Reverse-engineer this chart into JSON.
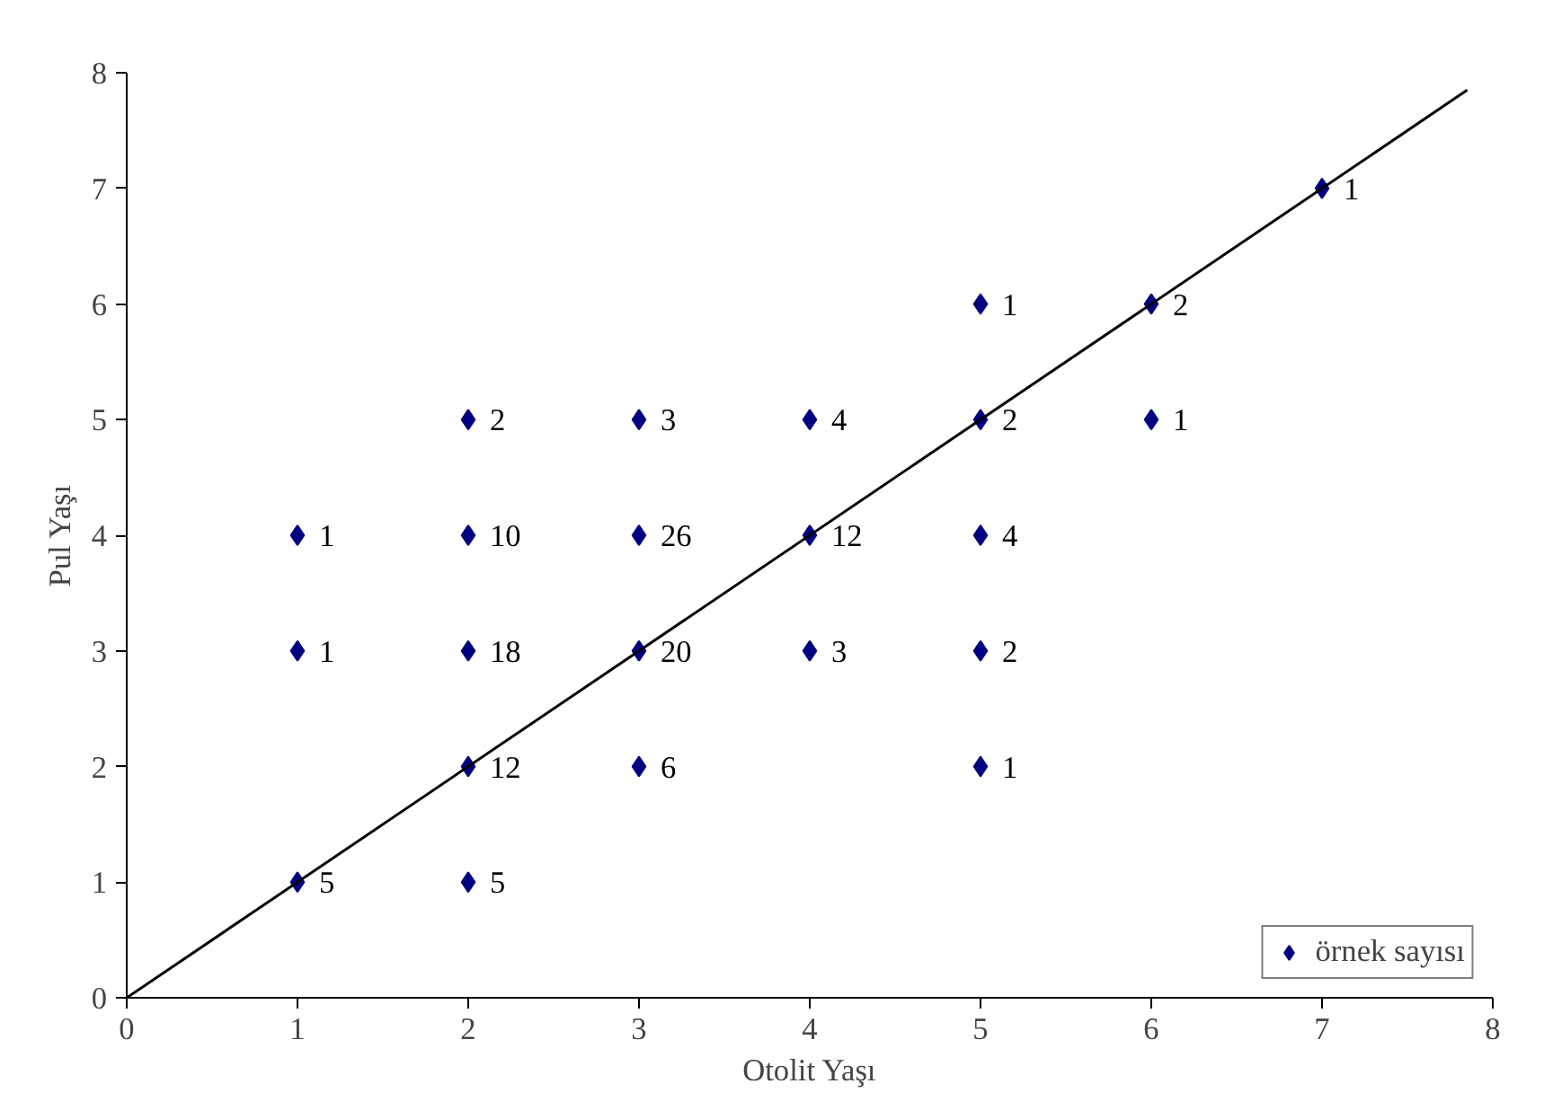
{
  "chart_data": {
    "type": "scatter",
    "xlabel": "Otolit Yaşı",
    "ylabel": "Pul Yaşı",
    "xlim": [
      0,
      8
    ],
    "ylim": [
      0,
      8
    ],
    "xticks": [
      0,
      1,
      2,
      3,
      4,
      5,
      6,
      7,
      8
    ],
    "yticks": [
      0,
      1,
      2,
      3,
      4,
      5,
      6,
      7,
      8
    ],
    "grid": false,
    "legend": "bottom right",
    "series": [
      {
        "name": "örnek sayısı",
        "color": "#000080",
        "marker": "diamond",
        "x": [
          1,
          1,
          1,
          2,
          2,
          2,
          2,
          2,
          3,
          3,
          3,
          3,
          4,
          4,
          4,
          5,
          5,
          5,
          5,
          5,
          6,
          6,
          7
        ],
        "values": [
          1,
          3,
          4,
          1,
          2,
          3,
          4,
          5,
          2,
          3,
          4,
          5,
          3,
          4,
          5,
          2,
          3,
          4,
          5,
          6,
          5,
          6,
          7
        ]
      },
      {
        "type": "line",
        "color": "#000000",
        "x": [
          0,
          7.85
        ],
        "values": [
          0,
          7.85
        ],
        "line_style": "solid"
      }
    ],
    "annotations": [
      {
        "text": "5",
        "x": 1,
        "y": 1
      },
      {
        "text": "1",
        "x": 1,
        "y": 3
      },
      {
        "text": "1",
        "x": 1,
        "y": 4
      },
      {
        "text": "5",
        "x": 2,
        "y": 1
      },
      {
        "text": "12",
        "x": 2,
        "y": 2
      },
      {
        "text": "18",
        "x": 2,
        "y": 3
      },
      {
        "text": "10",
        "x": 2,
        "y": 4
      },
      {
        "text": "2",
        "x": 2,
        "y": 5
      },
      {
        "text": "6",
        "x": 3,
        "y": 2
      },
      {
        "text": "20",
        "x": 3,
        "y": 3
      },
      {
        "text": "26",
        "x": 3,
        "y": 4
      },
      {
        "text": "3",
        "x": 3,
        "y": 5
      },
      {
        "text": "3",
        "x": 4,
        "y": 3
      },
      {
        "text": "12",
        "x": 4,
        "y": 4
      },
      {
        "text": "4",
        "x": 4,
        "y": 5
      },
      {
        "text": "1",
        "x": 5,
        "y": 2
      },
      {
        "text": "2",
        "x": 5,
        "y": 3
      },
      {
        "text": "4",
        "x": 5,
        "y": 4
      },
      {
        "text": "2",
        "x": 5,
        "y": 5
      },
      {
        "text": "1",
        "x": 5,
        "y": 6
      },
      {
        "text": "1",
        "x": 6,
        "y": 5
      },
      {
        "text": "2",
        "x": 6,
        "y": 6
      },
      {
        "text": "1",
        "x": 7,
        "y": 7
      }
    ]
  }
}
